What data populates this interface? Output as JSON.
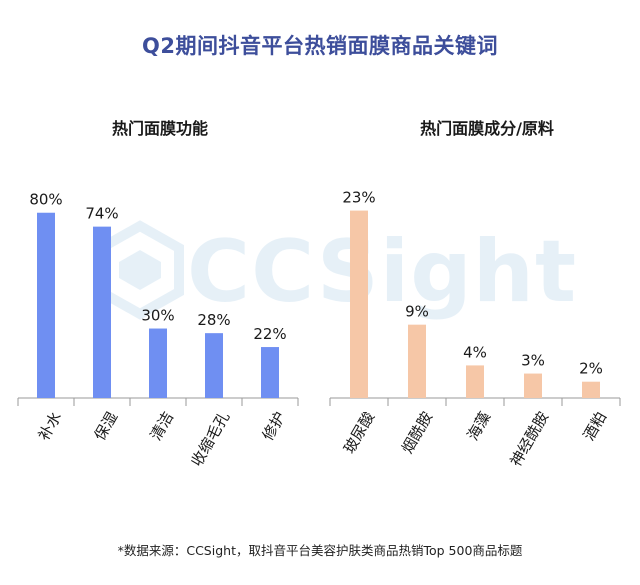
{
  "title": "Q2期间抖音平台热销面膜商品关键词",
  "watermark": "CCSight",
  "chart_data": [
    {
      "type": "bar",
      "title": "热门面膜功能",
      "categories": [
        "补水",
        "保湿",
        "清洁",
        "收缩毛孔",
        "修护"
      ],
      "values": [
        80,
        74,
        30,
        28,
        22
      ],
      "value_labels": [
        "80%",
        "74%",
        "30%",
        "28%",
        "22%"
      ],
      "unit": "%",
      "ylim": [
        0,
        95
      ],
      "grid": false,
      "color": "#6f8ff2"
    },
    {
      "type": "bar",
      "title": "热门面膜成分/原料",
      "categories": [
        "玻尿酸",
        "烟酰胺",
        "海藻",
        "神经酰胺",
        "酒粕"
      ],
      "values": [
        23,
        9,
        4,
        3,
        2
      ],
      "value_labels": [
        "23%",
        "9%",
        "4%",
        "3%",
        "2%"
      ],
      "unit": "%",
      "ylim": [
        0,
        27
      ],
      "grid": false,
      "color": "#f6c7a7"
    }
  ],
  "footnote": "*数据来源：CCSight，取抖音平台美容护肤类商品热销Top 500商品标题"
}
